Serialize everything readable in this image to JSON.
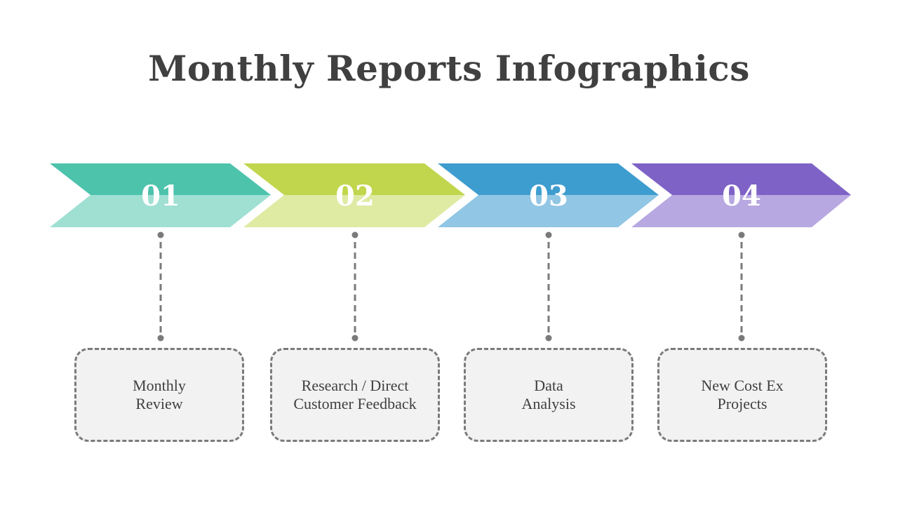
{
  "title": "Monthly Reports Infographics",
  "steps": [
    {
      "number": "01",
      "line1": "Monthly",
      "line2": "Review",
      "color_dark": "#4dc3ac",
      "color_light": "#9fe0d3"
    },
    {
      "number": "02",
      "line1": "Research / Direct",
      "line2": "Customer Feedback",
      "color_dark": "#c1d64d",
      "color_light": "#dfeaa3"
    },
    {
      "number": "03",
      "line1": "Data",
      "line2": "Analysis",
      "color_dark": "#3e9dcf",
      "color_light": "#91c6e4"
    },
    {
      "number": "04",
      "line1": "New Cost Ex",
      "line2": "Projects",
      "color_dark": "#7e62c6",
      "color_light": "#b8a8e1"
    }
  ],
  "connector_color": "#7a7a7a"
}
